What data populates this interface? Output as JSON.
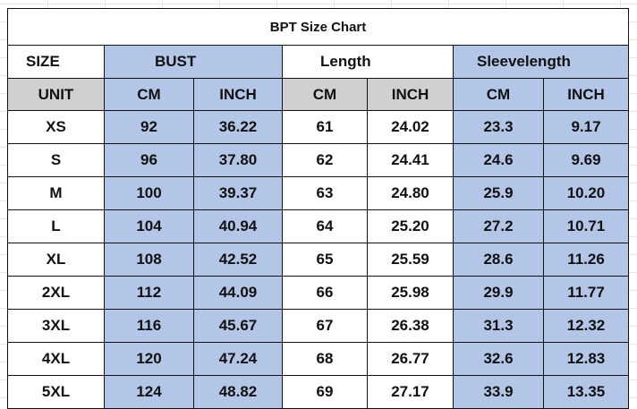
{
  "title": "BPT Size Chart",
  "header": {
    "size_label": "SIZE",
    "unit_label": "UNIT",
    "groups": [
      "BUST",
      "Length",
      "Sleevelength"
    ],
    "units": [
      "CM",
      "INCH",
      "CM",
      "INCH",
      "CM",
      "INCH"
    ]
  },
  "rows": [
    {
      "size": "XS",
      "values": [
        "92",
        "36.22",
        "61",
        "24.02",
        "23.3",
        "9.17"
      ]
    },
    {
      "size": "S",
      "values": [
        "96",
        "37.80",
        "62",
        "24.41",
        "24.6",
        "9.69"
      ]
    },
    {
      "size": "M",
      "values": [
        "100",
        "39.37",
        "63",
        "24.80",
        "25.9",
        "10.20"
      ]
    },
    {
      "size": "L",
      "values": [
        "104",
        "40.94",
        "64",
        "25.20",
        "27.2",
        "10.71"
      ]
    },
    {
      "size": "XL",
      "values": [
        "108",
        "42.52",
        "65",
        "25.59",
        "28.6",
        "11.26"
      ]
    },
    {
      "size": "2XL",
      "values": [
        "112",
        "44.09",
        "66",
        "25.98",
        "29.9",
        "11.77"
      ]
    },
    {
      "size": "3XL",
      "values": [
        "116",
        "45.67",
        "67",
        "26.38",
        "31.3",
        "12.32"
      ]
    },
    {
      "size": "4XL",
      "values": [
        "120",
        "47.24",
        "68",
        "26.77",
        "32.6",
        "12.83"
      ]
    },
    {
      "size": "5XL",
      "values": [
        "124",
        "48.82",
        "69",
        "27.17",
        "33.9",
        "13.35"
      ]
    }
  ],
  "colors": {
    "highlight_blue": "#b4c6e7",
    "unit_gray": "#d0d0d0",
    "border": "#111111"
  }
}
